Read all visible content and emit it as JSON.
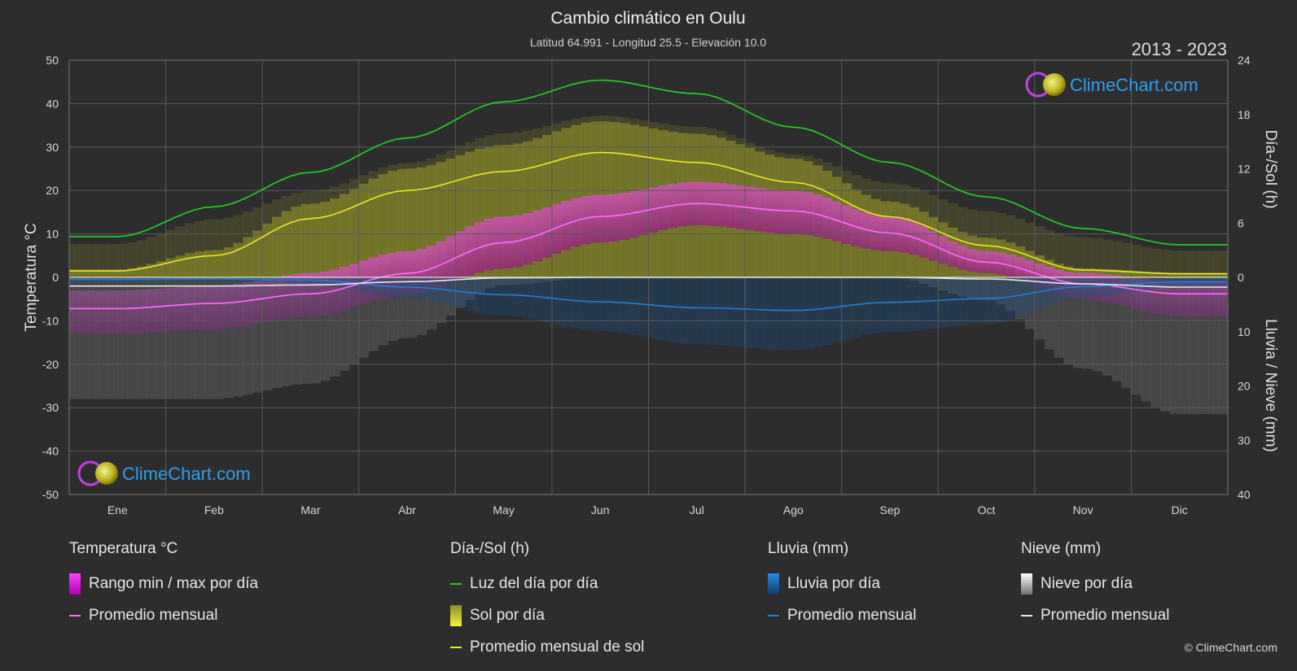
{
  "title": "Cambio climático en Oulu",
  "subtitle": "Latitud 64.991 - Longitud 25.5 - Elevación 10.0",
  "year_range": "2013 - 2023",
  "logo_text": "ClimeChart.com",
  "copyright": "© ClimeChart.com",
  "colors": {
    "background": "#2d2d2d",
    "daylight": "#22d322",
    "sun_avg": "#e8e82a",
    "sun_fill": "#9a9a28",
    "temp_fill": "#d02ad0",
    "temp_avg": "#ff6cff",
    "rain": "#1f7fd6",
    "snow": "#d8d8d8",
    "grid": "#5a5a5a"
  },
  "chart_data": {
    "type": "line",
    "months": [
      "Ene",
      "Feb",
      "Mar",
      "Abr",
      "May",
      "Jun",
      "Jul",
      "Ago",
      "Sep",
      "Oct",
      "Nov",
      "Dic"
    ],
    "left_axis": {
      "label": "Temperatura °C",
      "min": -50,
      "max": 50,
      "ticks": [
        50,
        40,
        30,
        20,
        10,
        0,
        -10,
        -20,
        -30,
        -40,
        -50
      ]
    },
    "right_axis_top": {
      "label": "Día-/Sol (h)",
      "min": 0,
      "max": 24,
      "ticks": [
        24,
        18,
        12,
        6,
        0
      ]
    },
    "right_axis_bottom": {
      "label": "Lluvia / Nieve (mm)",
      "min": 0,
      "max": 40,
      "ticks": [
        0,
        10,
        20,
        30,
        40
      ]
    },
    "series": [
      {
        "name": "Luz del día por día",
        "axis": "sun_h",
        "values": [
          4.5,
          7.8,
          11.6,
          15.4,
          19.4,
          21.8,
          20.3,
          16.6,
          12.7,
          8.9,
          5.4,
          3.6
        ]
      },
      {
        "name": "Promedio mensual de sol",
        "axis": "sun_h",
        "values": [
          0.7,
          2.4,
          6.5,
          9.6,
          11.7,
          13.8,
          12.7,
          10.5,
          6.7,
          3.5,
          0.8,
          0.4
        ]
      },
      {
        "name": "Temperatura promedio mensual",
        "axis": "temp_c",
        "values": [
          -7.2,
          -6.0,
          -3.8,
          0.9,
          8.0,
          14.0,
          17.0,
          15.3,
          10.2,
          3.5,
          -1.5,
          -3.8
        ]
      },
      {
        "name": "Lluvia promedio mensual",
        "axis": "precip_mm",
        "values": [
          0.4,
          0.3,
          0.5,
          1.8,
          3.2,
          4.5,
          5.6,
          6.1,
          4.6,
          3.9,
          1.7,
          0.8
        ]
      },
      {
        "name": "Nieve promedio mensual",
        "axis": "precip_mm",
        "values": [
          1.6,
          1.6,
          1.4,
          0.8,
          0.1,
          0.0,
          0.0,
          0.0,
          0.0,
          0.3,
          1.2,
          1.8
        ]
      },
      {
        "name": "Temperatura máxima diaria",
        "axis": "temp_c",
        "values": [
          -3,
          -2,
          1,
          6,
          14,
          19,
          22,
          20,
          14,
          6,
          1,
          -1
        ]
      },
      {
        "name": "Temperatura mínima diaria",
        "axis": "temp_c",
        "values": [
          -13,
          -12,
          -9,
          -4,
          2,
          8,
          12,
          10,
          6,
          1,
          -5,
          -9
        ]
      }
    ]
  },
  "legend": {
    "temperature": {
      "title": "Temperatura °C",
      "items": [
        "Rango min / max por día",
        "Promedio mensual"
      ]
    },
    "sun": {
      "title": "Día-/Sol (h)",
      "items": [
        "Luz del día por día",
        "Sol por día",
        "Promedio mensual de sol"
      ]
    },
    "rain": {
      "title": "Lluvia (mm)",
      "items": [
        "Lluvia por día",
        "Promedio mensual"
      ]
    },
    "snow": {
      "title": "Nieve (mm)",
      "items": [
        "Nieve por día",
        "Promedio mensual"
      ]
    }
  }
}
